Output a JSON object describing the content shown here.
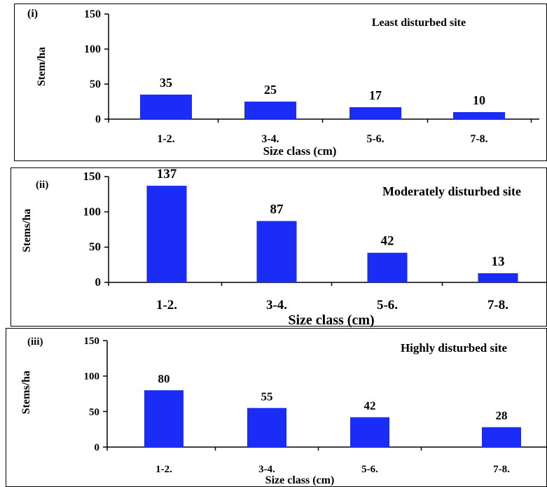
{
  "chart_data": [
    {
      "type": "bar",
      "panel_label": "(i)",
      "title": "Least disturbed site",
      "xlabel": "Size class (cm)",
      "ylabel": "Stem/ha",
      "categories": [
        "1-2.",
        "3-4.",
        "5-6.",
        "7-8."
      ],
      "values": [
        35,
        25,
        17,
        10
      ],
      "ylim": [
        0,
        150
      ],
      "yticks": [
        "0",
        "50",
        "100",
        "150"
      ],
      "bar_color": "#1a2cf5",
      "grid": false,
      "legend": "none"
    },
    {
      "type": "bar",
      "panel_label": "(ii)",
      "title": "Moderately disturbed site",
      "xlabel": "Size class (cm)",
      "ylabel": "Stems/ha",
      "categories": [
        "1-2.",
        "3-4.",
        "5-6.",
        "7-8."
      ],
      "values": [
        137,
        87,
        42,
        13
      ],
      "ylim": [
        0,
        150
      ],
      "yticks": [
        "0",
        "50",
        "100",
        "150"
      ],
      "bar_color": "#1a2cf5",
      "grid": false,
      "legend": "none"
    },
    {
      "type": "bar",
      "panel_label": "(iii)",
      "title": "Highly disturbed site",
      "xlabel": "Size class (cm)",
      "ylabel": "Stems/ha",
      "categories": [
        "1-2.",
        "3-4.",
        "5-6.",
        "7-8."
      ],
      "values": [
        80,
        55,
        42,
        28
      ],
      "ylim": [
        0,
        150
      ],
      "yticks": [
        "0",
        "50",
        "100",
        "150"
      ],
      "bar_color": "#1a2cf5",
      "grid": false,
      "legend": "none"
    }
  ]
}
